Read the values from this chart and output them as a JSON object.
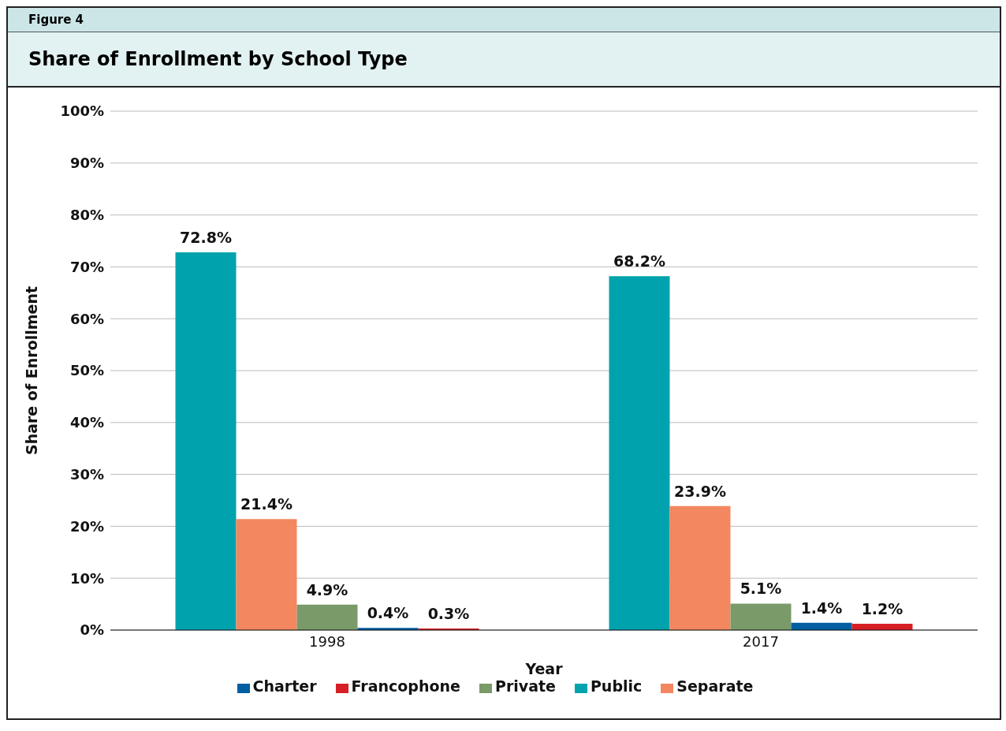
{
  "chart_data": {
    "type": "bar",
    "title": "Share of Enrollment by School Type",
    "annotations": [
      "Figure 4"
    ],
    "xlabel": "Year",
    "ylabel": "Share of Enrollment",
    "categories": [
      "1998",
      "2017"
    ],
    "series": [
      {
        "name": "Public",
        "color": "#00a3ad",
        "values": [
          72.8,
          68.2
        ],
        "value_labels": [
          "72.8%",
          "68.2%"
        ]
      },
      {
        "name": "Separate",
        "color": "#f3875f",
        "values": [
          21.4,
          23.9
        ],
        "value_labels": [
          "21.4%",
          "23.9%"
        ]
      },
      {
        "name": "Private",
        "color": "#7a9a6a",
        "values": [
          4.9,
          5.1
        ],
        "value_labels": [
          "4.9%",
          "5.1%"
        ]
      },
      {
        "name": "Charter",
        "color": "#005ea2",
        "values": [
          0.4,
          1.4
        ],
        "value_labels": [
          "0.4%",
          "1.4%"
        ]
      },
      {
        "name": "Francophone",
        "color": "#d71f26",
        "values": [
          0.3,
          1.2
        ],
        "value_labels": [
          "0.3%",
          "1.2%"
        ]
      }
    ],
    "ylim": [
      0,
      100
    ],
    "yticks": [
      {
        "value": 0,
        "label": "0%"
      },
      {
        "value": 10,
        "label": "10%"
      },
      {
        "value": 20,
        "label": "20%"
      },
      {
        "value": 30,
        "label": "30%"
      },
      {
        "value": 40,
        "label": "40%"
      },
      {
        "value": 50,
        "label": "50%"
      },
      {
        "value": 60,
        "label": "60%"
      },
      {
        "value": 70,
        "label": "70%"
      },
      {
        "value": 80,
        "label": "80%"
      },
      {
        "value": 90,
        "label": "90%"
      },
      {
        "value": 100,
        "label": "100%"
      }
    ],
    "grid": "y",
    "legend": "bottom"
  }
}
